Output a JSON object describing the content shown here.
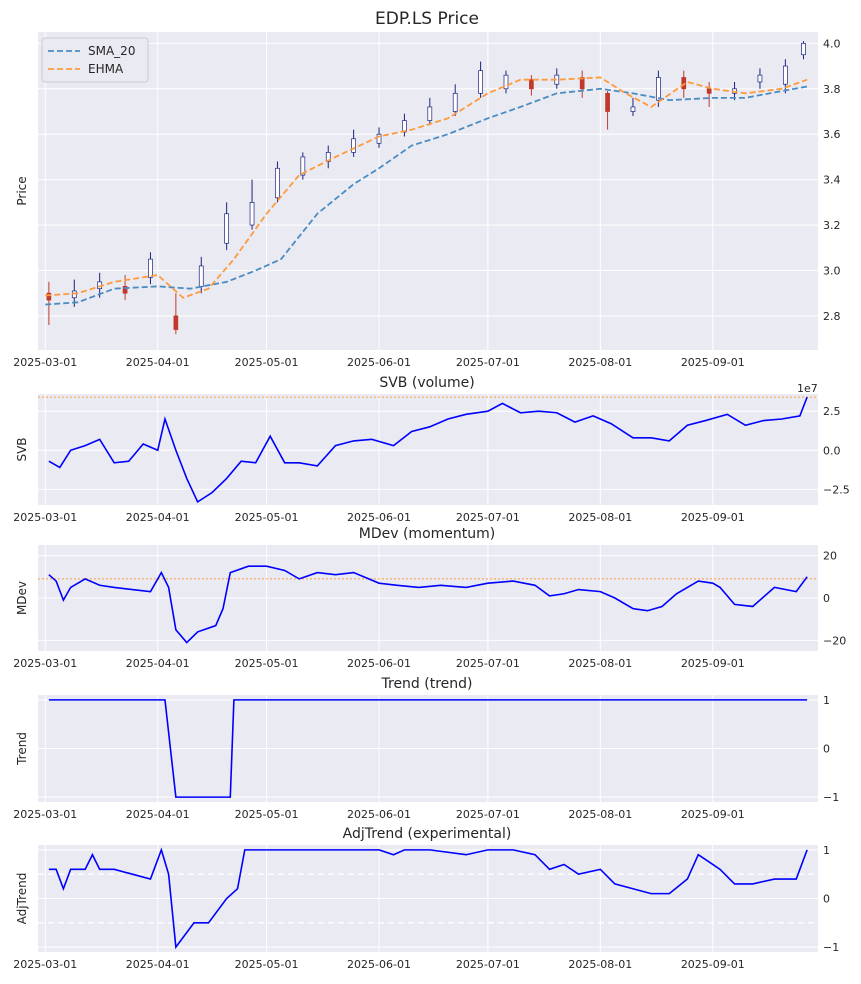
{
  "chart_data": [
    {
      "type": "candlestick",
      "title": "EDP.LS Price",
      "ylabel": "Price",
      "ylim": [
        2.65,
        4.05
      ],
      "yticks": [
        2.8,
        3.0,
        3.2,
        3.4,
        3.6,
        3.8,
        4.0
      ],
      "ytick_labels": [
        "2.8",
        "3.0",
        "3.2",
        "3.4",
        "3.6",
        "3.8",
        "4.0"
      ],
      "xlim": [
        "2025-02-27",
        "2025-09-30"
      ],
      "xticks": [
        "2025-03-01",
        "2025-04-01",
        "2025-05-01",
        "2025-06-01",
        "2025-07-01",
        "2025-08-01",
        "2025-09-01"
      ],
      "grid": true,
      "legend": "top-left",
      "colors": {
        "up": "#ffffff",
        "up_edge": "#1a237e",
        "down": "#c0392b",
        "sma": "#4a8cc2",
        "ehma": "#ff9a3c"
      },
      "series": [
        {
          "name": "SMA_20",
          "style": "dashed",
          "color": "#4a8cc2",
          "x": [
            "2025-03-01",
            "2025-03-10",
            "2025-03-20",
            "2025-04-01",
            "2025-04-10",
            "2025-04-20",
            "2025-04-28",
            "2025-05-05",
            "2025-05-15",
            "2025-05-25",
            "2025-06-01",
            "2025-06-10",
            "2025-06-20",
            "2025-07-01",
            "2025-07-10",
            "2025-07-20",
            "2025-08-01",
            "2025-08-10",
            "2025-08-20",
            "2025-09-01",
            "2025-09-10",
            "2025-09-20",
            "2025-09-27"
          ],
          "values": [
            2.85,
            2.86,
            2.92,
            2.93,
            2.92,
            2.95,
            3.0,
            3.05,
            3.25,
            3.38,
            3.45,
            3.55,
            3.6,
            3.67,
            3.72,
            3.78,
            3.8,
            3.78,
            3.75,
            3.76,
            3.76,
            3.79,
            3.81
          ]
        },
        {
          "name": "EHMA",
          "style": "dashed",
          "color": "#ff9a3c",
          "x": [
            "2025-03-01",
            "2025-03-10",
            "2025-03-20",
            "2025-04-01",
            "2025-04-08",
            "2025-04-15",
            "2025-04-22",
            "2025-05-01",
            "2025-05-10",
            "2025-05-20",
            "2025-06-01",
            "2025-06-10",
            "2025-06-20",
            "2025-07-01",
            "2025-07-10",
            "2025-07-20",
            "2025-08-01",
            "2025-08-08",
            "2025-08-15",
            "2025-08-25",
            "2025-09-01",
            "2025-09-10",
            "2025-09-20",
            "2025-09-27"
          ],
          "values": [
            2.89,
            2.9,
            2.95,
            2.98,
            2.88,
            2.92,
            3.05,
            3.25,
            3.42,
            3.5,
            3.59,
            3.62,
            3.67,
            3.78,
            3.84,
            3.84,
            3.85,
            3.78,
            3.72,
            3.83,
            3.8,
            3.78,
            3.8,
            3.84
          ]
        }
      ],
      "candles": {
        "x": [
          "2025-03-02",
          "2025-03-09",
          "2025-03-16",
          "2025-03-23",
          "2025-03-30",
          "2025-04-06",
          "2025-04-13",
          "2025-04-20",
          "2025-04-27",
          "2025-05-04",
          "2025-05-11",
          "2025-05-18",
          "2025-05-25",
          "2025-06-01",
          "2025-06-08",
          "2025-06-15",
          "2025-06-22",
          "2025-06-29",
          "2025-07-06",
          "2025-07-13",
          "2025-07-20",
          "2025-07-27",
          "2025-08-03",
          "2025-08-10",
          "2025-08-17",
          "2025-08-24",
          "2025-08-31",
          "2025-09-07",
          "2025-09-14",
          "2025-09-21",
          "2025-09-26"
        ],
        "open": [
          2.9,
          2.88,
          2.92,
          2.93,
          2.97,
          2.8,
          2.93,
          3.12,
          3.2,
          3.32,
          3.42,
          3.48,
          3.52,
          3.56,
          3.61,
          3.66,
          3.7,
          3.78,
          3.8,
          3.84,
          3.82,
          3.85,
          3.78,
          3.7,
          3.75,
          3.85,
          3.8,
          3.78,
          3.83,
          3.82,
          3.95
        ],
        "close": [
          2.87,
          2.91,
          2.95,
          2.9,
          3.05,
          2.74,
          3.02,
          3.25,
          3.3,
          3.45,
          3.5,
          3.52,
          3.58,
          3.6,
          3.66,
          3.72,
          3.78,
          3.88,
          3.86,
          3.8,
          3.86,
          3.8,
          3.7,
          3.72,
          3.85,
          3.8,
          3.78,
          3.8,
          3.86,
          3.9,
          4.0
        ],
        "high": [
          2.95,
          2.96,
          2.99,
          2.98,
          3.08,
          2.9,
          3.06,
          3.3,
          3.4,
          3.48,
          3.52,
          3.55,
          3.62,
          3.63,
          3.69,
          3.76,
          3.82,
          3.92,
          3.88,
          3.86,
          3.89,
          3.88,
          3.79,
          3.76,
          3.88,
          3.88,
          3.83,
          3.83,
          3.89,
          3.93,
          4.01
        ],
        "low": [
          2.76,
          2.84,
          2.88,
          2.87,
          2.94,
          2.72,
          2.9,
          3.09,
          3.18,
          3.3,
          3.4,
          3.45,
          3.5,
          3.54,
          3.59,
          3.64,
          3.68,
          3.76,
          3.78,
          3.77,
          3.8,
          3.76,
          3.62,
          3.68,
          3.72,
          3.76,
          3.72,
          3.75,
          3.8,
          3.78,
          3.93
        ]
      }
    },
    {
      "type": "line",
      "title": "SVB (volume)",
      "ylabel": "SVB",
      "ylim": [
        -3.5,
        3.6
      ],
      "yticks": [
        -2.5,
        0.0,
        2.5
      ],
      "ytick_labels": [
        "−2.5",
        "0.0",
        "2.5"
      ],
      "offset_text": "1e7",
      "threshold": 3.4,
      "grid": true,
      "color": "#0000ff",
      "x": [
        "2025-03-02",
        "2025-03-05",
        "2025-03-08",
        "2025-03-12",
        "2025-03-16",
        "2025-03-20",
        "2025-03-24",
        "2025-03-28",
        "2025-04-01",
        "2025-04-03",
        "2025-04-06",
        "2025-04-09",
        "2025-04-12",
        "2025-04-16",
        "2025-04-20",
        "2025-04-24",
        "2025-04-28",
        "2025-05-02",
        "2025-05-06",
        "2025-05-10",
        "2025-05-15",
        "2025-05-20",
        "2025-05-25",
        "2025-05-30",
        "2025-06-05",
        "2025-06-10",
        "2025-06-15",
        "2025-06-20",
        "2025-06-25",
        "2025-07-01",
        "2025-07-05",
        "2025-07-10",
        "2025-07-15",
        "2025-07-20",
        "2025-07-25",
        "2025-07-30",
        "2025-08-04",
        "2025-08-10",
        "2025-08-15",
        "2025-08-20",
        "2025-08-25",
        "2025-08-30",
        "2025-09-05",
        "2025-09-10",
        "2025-09-15",
        "2025-09-20",
        "2025-09-25",
        "2025-09-27"
      ],
      "values": [
        -0.7,
        -1.1,
        0.0,
        0.3,
        0.7,
        -0.8,
        -0.7,
        0.4,
        0.0,
        2.0,
        0.0,
        -1.8,
        -3.3,
        -2.7,
        -1.8,
        -0.7,
        -0.8,
        0.9,
        -0.8,
        -0.8,
        -1.0,
        0.3,
        0.6,
        0.7,
        0.3,
        1.2,
        1.5,
        2.0,
        2.3,
        2.5,
        3.0,
        2.4,
        2.5,
        2.4,
        1.8,
        2.2,
        1.7,
        0.8,
        0.8,
        0.6,
        1.6,
        1.9,
        2.3,
        1.6,
        1.9,
        2.0,
        2.2,
        3.4
      ]
    },
    {
      "type": "line",
      "title": "MDev (momentum)",
      "ylabel": "MDev",
      "ylim": [
        -25,
        25
      ],
      "yticks": [
        -20,
        0,
        20
      ],
      "ytick_labels": [
        "−20",
        "0",
        "20"
      ],
      "threshold": 9,
      "grid": true,
      "color": "#0000ff",
      "x": [
        "2025-03-02",
        "2025-03-04",
        "2025-03-06",
        "2025-03-08",
        "2025-03-12",
        "2025-03-16",
        "2025-03-20",
        "2025-03-25",
        "2025-03-30",
        "2025-04-02",
        "2025-04-04",
        "2025-04-06",
        "2025-04-09",
        "2025-04-12",
        "2025-04-17",
        "2025-04-19",
        "2025-04-21",
        "2025-04-26",
        "2025-05-01",
        "2025-05-06",
        "2025-05-10",
        "2025-05-15",
        "2025-05-20",
        "2025-05-25",
        "2025-06-01",
        "2025-06-06",
        "2025-06-12",
        "2025-06-18",
        "2025-06-25",
        "2025-07-01",
        "2025-07-08",
        "2025-07-14",
        "2025-07-18",
        "2025-07-22",
        "2025-07-26",
        "2025-08-01",
        "2025-08-05",
        "2025-08-10",
        "2025-08-14",
        "2025-08-18",
        "2025-08-22",
        "2025-08-28",
        "2025-09-01",
        "2025-09-03",
        "2025-09-07",
        "2025-09-12",
        "2025-09-18",
        "2025-09-24",
        "2025-09-27"
      ],
      "values": [
        11,
        8,
        -1,
        5,
        9,
        6,
        5,
        4,
        3,
        12,
        5,
        -15,
        -21,
        -16,
        -13,
        -5,
        12,
        15,
        15,
        13,
        9,
        12,
        11,
        12,
        7,
        6,
        5,
        6,
        5,
        7,
        8,
        6,
        1,
        2,
        4,
        3,
        0,
        -5,
        -6,
        -4,
        2,
        8,
        7,
        5,
        -3,
        -4,
        5,
        3,
        10
      ]
    },
    {
      "type": "line",
      "title": "Trend (trend)",
      "ylabel": "Trend",
      "ylim": [
        -1.1,
        1.1
      ],
      "yticks": [
        -1,
        0,
        1
      ],
      "ytick_labels": [
        "−1",
        "0",
        "1"
      ],
      "grid": true,
      "color": "#0000ff",
      "x": [
        "2025-03-02",
        "2025-04-03",
        "2025-04-06",
        "2025-04-21",
        "2025-04-22",
        "2025-09-27"
      ],
      "values": [
        1,
        1,
        -1,
        -1,
        1,
        1
      ]
    },
    {
      "type": "line",
      "title": "AdjTrend (experimental)",
      "ylabel": "AdjTrend",
      "ylim": [
        -1.1,
        1.1
      ],
      "yticks": [
        -1,
        0,
        1
      ],
      "ytick_labels": [
        "−1",
        "0",
        "1"
      ],
      "hlines": [
        0.5,
        -0.5
      ],
      "grid": true,
      "color": "#0000ff",
      "x": [
        "2025-03-02",
        "2025-03-04",
        "2025-03-06",
        "2025-03-08",
        "2025-03-12",
        "2025-03-14",
        "2025-03-16",
        "2025-03-20",
        "2025-03-25",
        "2025-03-30",
        "2025-04-02",
        "2025-04-04",
        "2025-04-06",
        "2025-04-08",
        "2025-04-11",
        "2025-04-15",
        "2025-04-20",
        "2025-04-23",
        "2025-04-25",
        "2025-05-10",
        "2025-06-01",
        "2025-06-05",
        "2025-06-08",
        "2025-06-15",
        "2025-06-25",
        "2025-07-01",
        "2025-07-08",
        "2025-07-14",
        "2025-07-18",
        "2025-07-22",
        "2025-07-26",
        "2025-08-01",
        "2025-08-05",
        "2025-08-10",
        "2025-08-15",
        "2025-08-20",
        "2025-08-25",
        "2025-08-28",
        "2025-09-01",
        "2025-09-03",
        "2025-09-07",
        "2025-09-12",
        "2025-09-18",
        "2025-09-24",
        "2025-09-27"
      ],
      "values": [
        0.6,
        0.6,
        0.2,
        0.6,
        0.6,
        0.9,
        0.6,
        0.6,
        0.5,
        0.4,
        1.0,
        0.5,
        -1.0,
        -0.8,
        -0.5,
        -0.5,
        0.0,
        0.2,
        1.0,
        1.0,
        1.0,
        0.9,
        1.0,
        1.0,
        0.9,
        1.0,
        1.0,
        0.9,
        0.6,
        0.7,
        0.5,
        0.6,
        0.3,
        0.2,
        0.1,
        0.1,
        0.4,
        0.9,
        0.7,
        0.6,
        0.3,
        0.3,
        0.4,
        0.4,
        1.0
      ]
    }
  ]
}
